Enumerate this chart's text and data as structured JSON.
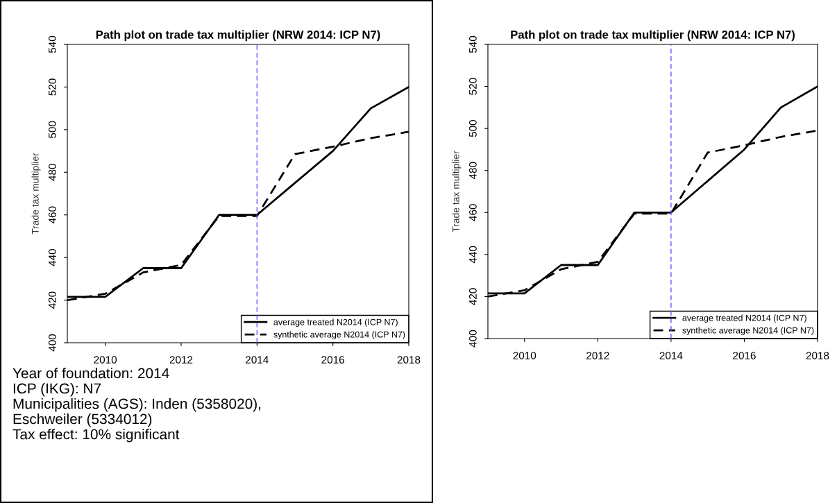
{
  "chart_data": [
    {
      "type": "line",
      "title": "Path plot on trade tax multiplier (NRW 2014: ICP N7)",
      "ylabel": "Trade tax multiplier",
      "x": [
        2009,
        2010,
        2011,
        2012,
        2013,
        2014,
        2015,
        2016,
        2017,
        2018
      ],
      "series": [
        {
          "name": "average treated N2014 (ICP N7)",
          "color": "#000000",
          "line_style": "solid",
          "values": [
            421.5,
            421.5,
            435,
            435,
            460,
            460,
            475,
            490,
            510,
            520
          ]
        },
        {
          "name": "synthetic average N2014 (ICP N7)",
          "color": "#000000",
          "line_style": "dashed",
          "values": [
            420,
            423,
            433,
            436.5,
            459.5,
            459.5,
            488.5,
            492,
            496,
            499
          ]
        }
      ],
      "xlim": [
        2009,
        2018
      ],
      "xticks": [
        2010,
        2012,
        2014,
        2016,
        2018
      ],
      "ylim": [
        400,
        540
      ],
      "yticks": [
        400,
        420,
        440,
        460,
        480,
        500,
        520,
        540
      ],
      "ref_lines": [
        {
          "axis": "x",
          "value": 2014,
          "color": "#5555ff",
          "line_style": "dashed"
        }
      ],
      "legend": "bottom right",
      "grid": false,
      "marker": "none",
      "annotations": [
        "Year of foundation: 2014",
        "ICP (IKG): N7",
        "Municipalities (AGS): Inden (5358020),",
        "Eschweiler (5334012)",
        "Tax effect: 10% significant"
      ]
    },
    {
      "type": "line",
      "title": "Path plot on trade tax multiplier (NRW 2014: ICP N7)",
      "ylabel": "Trade tax multiplier",
      "x": [
        2009,
        2010,
        2011,
        2012,
        2013,
        2014,
        2015,
        2016,
        2017,
        2018
      ],
      "series": [
        {
          "name": "average treated N2014 (ICP N7)",
          "color": "#000000",
          "line_style": "solid",
          "values": [
            421.5,
            421.5,
            435,
            435,
            460,
            460,
            475,
            490,
            510,
            520
          ]
        },
        {
          "name": "synthetic average N2014 (ICP N7)",
          "color": "#000000",
          "line_style": "dashed",
          "values": [
            420,
            423,
            433,
            436.5,
            459.5,
            459.5,
            488.5,
            492,
            496,
            499
          ]
        }
      ],
      "xlim": [
        2009,
        2018
      ],
      "xticks": [
        2010,
        2012,
        2014,
        2016,
        2018
      ],
      "ylim": [
        400,
        540
      ],
      "yticks": [
        400,
        420,
        440,
        460,
        480,
        500,
        520,
        540
      ],
      "ref_lines": [
        {
          "axis": "x",
          "value": 2014,
          "color": "#5555ff",
          "line_style": "dashed"
        }
      ],
      "legend": "bottom right",
      "grid": false,
      "marker": "none"
    }
  ]
}
